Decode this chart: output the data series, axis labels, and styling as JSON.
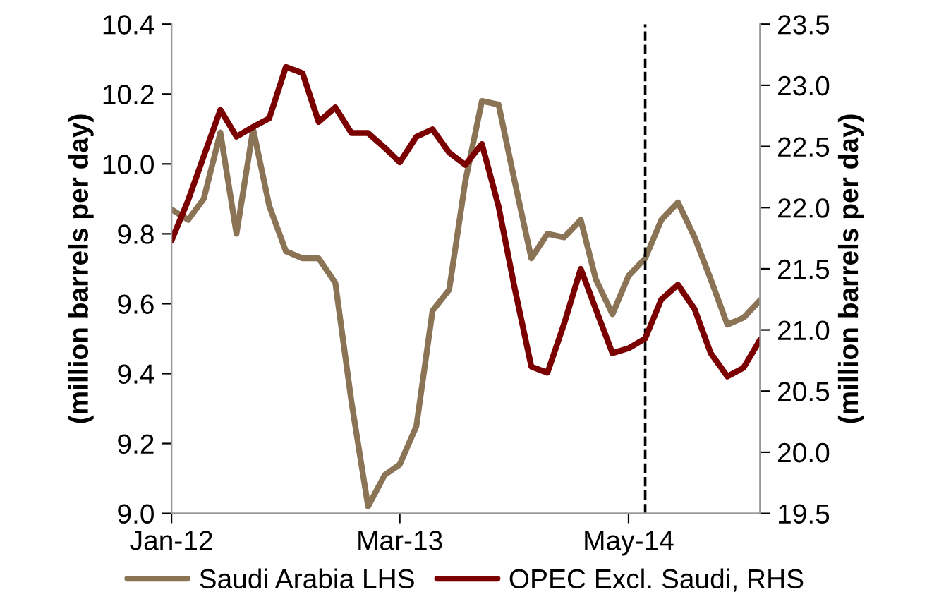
{
  "chart_data": {
    "type": "line",
    "ylabel": "(million barrels per day)",
    "y2label": "(million barrels per day)",
    "x": [
      "2012-01",
      "2012-02",
      "2012-03",
      "2012-04",
      "2012-05",
      "2012-06",
      "2012-07",
      "2012-08",
      "2012-09",
      "2012-10",
      "2012-11",
      "2012-12",
      "2013-01",
      "2013-02",
      "2013-03",
      "2013-04",
      "2013-05",
      "2013-06",
      "2013-07",
      "2013-08",
      "2013-09",
      "2013-10",
      "2013-11",
      "2013-12",
      "2014-01",
      "2014-02",
      "2014-03",
      "2014-04",
      "2014-05",
      "2014-06",
      "2014-07",
      "2014-08",
      "2014-09",
      "2014-10",
      "2014-11",
      "2014-12",
      "2015-01"
    ],
    "series": [
      {
        "name": "Saudi Arabia LHS",
        "color": "#8b7355",
        "values": [
          9.87,
          9.84,
          9.9,
          10.09,
          9.8,
          10.1,
          9.88,
          9.75,
          9.73,
          9.73,
          9.66,
          9.32,
          9.02,
          9.11,
          9.14,
          9.25,
          9.58,
          9.64,
          9.95,
          10.18,
          10.17,
          9.95,
          9.73,
          9.8,
          9.79,
          9.84,
          9.67,
          9.57,
          9.68,
          9.73,
          9.84,
          9.89,
          9.79,
          9.67,
          9.54,
          9.56,
          9.61
        ]
      },
      {
        "name": "OPEC Excl. Saudi, RHS",
        "color": "#7b0000",
        "axis": "y2",
        "values": [
          21.73,
          22.06,
          22.42,
          22.8,
          22.58,
          22.66,
          22.73,
          23.15,
          23.1,
          22.7,
          22.82,
          22.61,
          22.61,
          22.49,
          22.37,
          22.58,
          22.64,
          22.45,
          22.35,
          22.52,
          22.01,
          21.34,
          20.7,
          20.65,
          21.05,
          21.5,
          21.17,
          20.81,
          20.85,
          20.93,
          21.25,
          21.37,
          21.17,
          20.81,
          20.62,
          20.69,
          20.92
        ]
      }
    ],
    "xlim": [
      "2012-01",
      "2015-01"
    ],
    "xticks": [
      {
        "value": "2012-01",
        "label": "Jan-12"
      },
      {
        "value": "2013-03",
        "label": "Mar-13"
      },
      {
        "value": "2014-05",
        "label": "May-14"
      }
    ],
    "ylim": [
      9.0,
      10.4
    ],
    "yticks": [
      {
        "value": 9.0,
        "label": "9.0"
      },
      {
        "value": 9.2,
        "label": "9.2"
      },
      {
        "value": 9.4,
        "label": "9.4"
      },
      {
        "value": 9.6,
        "label": "9.6"
      },
      {
        "value": 9.8,
        "label": "9.8"
      },
      {
        "value": 10.0,
        "label": "10.0"
      },
      {
        "value": 10.2,
        "label": "10.2"
      },
      {
        "value": 10.4,
        "label": "10.4"
      }
    ],
    "y2lim": [
      19.5,
      23.5
    ],
    "y2ticks": [
      {
        "value": 19.5,
        "label": "19.5"
      },
      {
        "value": 20.0,
        "label": "20.0"
      },
      {
        "value": 20.5,
        "label": "20.5"
      },
      {
        "value": 21.0,
        "label": "21.0"
      },
      {
        "value": 21.5,
        "label": "21.5"
      },
      {
        "value": 22.0,
        "label": "22.0"
      },
      {
        "value": 22.5,
        "label": "22.5"
      },
      {
        "value": 23.0,
        "label": "23.0"
      },
      {
        "value": 23.5,
        "label": "23.5"
      }
    ],
    "ref_lines": [
      {
        "axis": "x",
        "value": "2014-06",
        "color": "#000000",
        "line_style": "dashed"
      }
    ],
    "legend": "bottom",
    "grid": false,
    "marker": "none",
    "line_style": "solid"
  }
}
